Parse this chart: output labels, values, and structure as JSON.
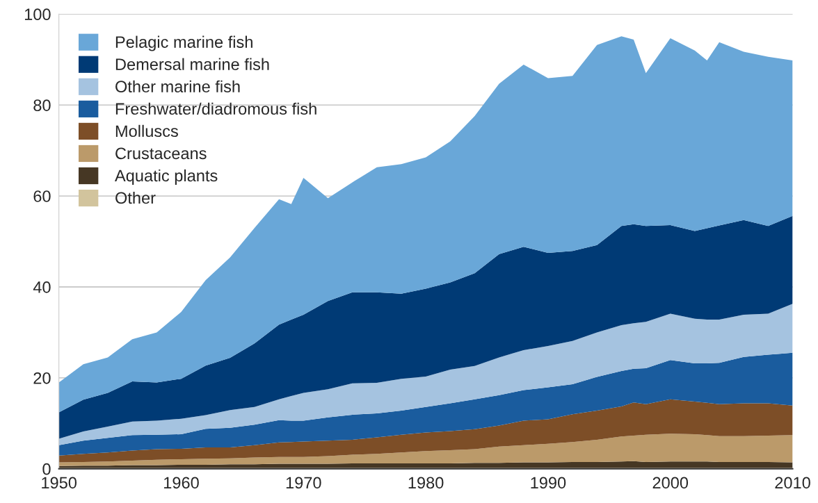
{
  "chart_data": {
    "type": "area",
    "stacked": true,
    "x": [
      1950,
      1952,
      1954,
      1956,
      1958,
      1960,
      1962,
      1964,
      1966,
      1968,
      1969,
      1970,
      1972,
      1974,
      1976,
      1978,
      1980,
      1982,
      1984,
      1986,
      1988,
      1990,
      1992,
      1994,
      1996,
      1997,
      1998,
      2000,
      2002,
      2003,
      2004,
      2006,
      2008,
      2010
    ],
    "series": [
      {
        "name": "Other",
        "color": "#d2c49d",
        "values": [
          0.2,
          0.2,
          0.2,
          0.2,
          0.2,
          0.2,
          0.2,
          0.2,
          0.2,
          0.2,
          0.2,
          0.2,
          0.2,
          0.2,
          0.2,
          0.2,
          0.2,
          0.2,
          0.2,
          0.2,
          0.2,
          0.2,
          0.2,
          0.2,
          0.2,
          0.2,
          0.2,
          0.2,
          0.2,
          0.2,
          0.2,
          0.2,
          0.2,
          0.2
        ]
      },
      {
        "name": "Aquatic plants",
        "color": "#463724",
        "values": [
          0.4,
          0.5,
          0.5,
          0.6,
          0.6,
          0.7,
          0.7,
          0.8,
          0.8,
          0.9,
          0.9,
          0.9,
          0.9,
          1.0,
          1.0,
          1.0,
          1.0,
          1.0,
          1.1,
          1.1,
          1.2,
          1.2,
          1.3,
          1.3,
          1.4,
          1.5,
          1.3,
          1.4,
          1.4,
          1.4,
          1.3,
          1.3,
          1.3,
          1.2
        ]
      },
      {
        "name": "Crustaceans",
        "color": "#bb9a6a",
        "values": [
          0.8,
          0.8,
          0.9,
          1.0,
          1.2,
          1.2,
          1.3,
          1.3,
          1.5,
          1.5,
          1.5,
          1.5,
          1.7,
          1.9,
          2.1,
          2.4,
          2.7,
          2.9,
          3.0,
          3.6,
          3.8,
          4.1,
          4.4,
          4.9,
          5.5,
          5.6,
          6.0,
          6.1,
          6.0,
          5.8,
          5.7,
          5.7,
          5.8,
          6.0
        ]
      },
      {
        "name": "Molluscs",
        "color": "#7d4e27",
        "values": [
          1.5,
          1.8,
          2.0,
          2.2,
          2.3,
          2.3,
          2.5,
          2.4,
          2.7,
          3.2,
          3.3,
          3.4,
          3.4,
          3.3,
          3.6,
          3.9,
          4.1,
          4.2,
          4.4,
          4.6,
          5.4,
          5.4,
          6.1,
          6.4,
          6.6,
          7.3,
          6.7,
          7.6,
          7.2,
          7.1,
          7.0,
          7.2,
          7.1,
          6.5
        ]
      },
      {
        "name": "Freshwater/diadromous fish",
        "color": "#1a5c9e",
        "values": [
          2.3,
          2.9,
          3.2,
          3.4,
          3.2,
          3.2,
          4.1,
          4.3,
          4.5,
          4.9,
          4.7,
          4.6,
          5.1,
          5.5,
          5.3,
          5.3,
          5.6,
          6.1,
          6.6,
          6.7,
          6.7,
          7.0,
          6.6,
          7.4,
          7.8,
          7.4,
          7.9,
          8.6,
          8.4,
          8.7,
          9.1,
          10.2,
          10.7,
          11.6
        ]
      },
      {
        "name": "Other marine fish",
        "color": "#a5c3e0",
        "values": [
          1.4,
          2.0,
          2.5,
          3.0,
          3.1,
          3.4,
          3.0,
          3.9,
          3.9,
          4.6,
          5.4,
          6.1,
          6.2,
          6.9,
          6.7,
          7.0,
          6.7,
          7.4,
          7.3,
          8.3,
          8.8,
          9.1,
          9.5,
          9.8,
          10.1,
          10.0,
          10.2,
          10.2,
          9.8,
          9.6,
          9.5,
          9.3,
          9.0,
          10.8
        ]
      },
      {
        "name": "Demersal marine fish",
        "color": "#003a75",
        "values": [
          5.8,
          7.0,
          7.4,
          8.8,
          8.4,
          8.8,
          10.9,
          11.5,
          14.0,
          16.4,
          16.8,
          17.2,
          19.4,
          20.0,
          19.9,
          18.7,
          19.3,
          19.2,
          20.4,
          22.7,
          22.7,
          20.5,
          19.8,
          19.2,
          21.8,
          21.8,
          21.1,
          19.5,
          19.3,
          20.1,
          20.7,
          20.8,
          19.3,
          19.3
        ]
      },
      {
        "name": "Pelagic marine fish",
        "color": "#69a7d8",
        "values": [
          6.6,
          7.8,
          7.8,
          9.3,
          11.0,
          14.7,
          18.8,
          22.1,
          25.4,
          27.6,
          25.4,
          30.1,
          22.6,
          24.2,
          27.5,
          28.5,
          28.9,
          31.0,
          34.6,
          37.5,
          40.1,
          38.4,
          38.5,
          44.0,
          41.7,
          40.6,
          33.6,
          41.1,
          39.7,
          36.9,
          40.3,
          37.0,
          37.2,
          34.2
        ]
      }
    ],
    "xlim": [
      1950,
      2010
    ],
    "xticks": [
      1950,
      1960,
      1970,
      1980,
      1990,
      2000,
      2010
    ],
    "ylim": [
      0,
      100
    ],
    "yticks": [
      0,
      20,
      40,
      60,
      80,
      100
    ],
    "grid": "y",
    "legend": "top left"
  }
}
